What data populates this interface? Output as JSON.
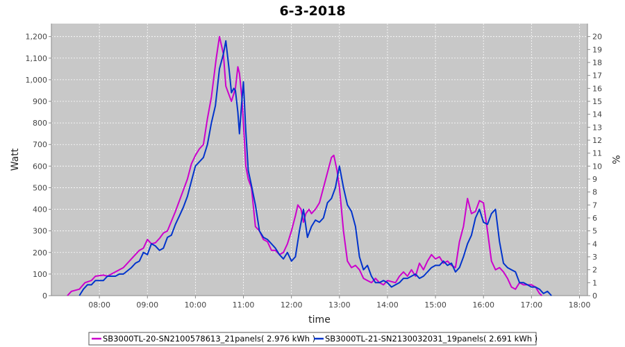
{
  "chart_data": {
    "type": "line",
    "title": "6-3-2018",
    "xlabel": "time",
    "ylabel": "Watt",
    "y2label": "%",
    "x_ticks": [
      "08:00",
      "09:00",
      "10:00",
      "11:00",
      "12:00",
      "13:00",
      "14:00",
      "15:00",
      "16:00",
      "17:00",
      "18:00"
    ],
    "y_ticks": [
      "0",
      "100",
      "200",
      "300",
      "400",
      "500",
      "600",
      "700",
      "800",
      "900",
      "1,000",
      "1,100",
      "1,200"
    ],
    "y2_ticks": [
      "0",
      "1",
      "2",
      "3",
      "4",
      "5",
      "6",
      "7",
      "8",
      "9",
      "10",
      "11",
      "12",
      "13",
      "14",
      "15",
      "16",
      "17",
      "18",
      "19",
      "20"
    ],
    "xlim": [
      "07:00",
      "18:10"
    ],
    "ylim": [
      0,
      1260
    ],
    "y2lim": [
      0,
      21
    ],
    "grid": true,
    "legend_position": "bottom",
    "colors": {
      "plot_bg": "#c8c8c8",
      "grid": "#ffffff",
      "series1": "#cc00cc",
      "series2": "#0033cc"
    },
    "series": [
      {
        "name": "SB3000TL-20-SN2100578613_21panels( 2.976 kWh )",
        "color": "#cc00cc",
        "points": [
          [
            "07:20",
            0
          ],
          [
            "07:25",
            20
          ],
          [
            "07:35",
            30
          ],
          [
            "07:42",
            60
          ],
          [
            "07:50",
            70
          ],
          [
            "07:55",
            90
          ],
          [
            "08:05",
            95
          ],
          [
            "08:10",
            90
          ],
          [
            "08:15",
            100
          ],
          [
            "08:20",
            110
          ],
          [
            "08:30",
            130
          ],
          [
            "08:40",
            170
          ],
          [
            "08:50",
            210
          ],
          [
            "08:55",
            220
          ],
          [
            "09:00",
            260
          ],
          [
            "09:05",
            240
          ],
          [
            "09:10",
            245
          ],
          [
            "09:15",
            265
          ],
          [
            "09:20",
            290
          ],
          [
            "09:25",
            300
          ],
          [
            "09:35",
            390
          ],
          [
            "09:42",
            460
          ],
          [
            "09:50",
            540
          ],
          [
            "09:55",
            610
          ],
          [
            "10:00",
            650
          ],
          [
            "10:05",
            680
          ],
          [
            "10:10",
            700
          ],
          [
            "10:15",
            820
          ],
          [
            "10:20",
            920
          ],
          [
            "10:26",
            1100
          ],
          [
            "10:30",
            1200
          ],
          [
            "10:35",
            1120
          ],
          [
            "10:38",
            970
          ],
          [
            "10:42",
            930
          ],
          [
            "10:45",
            900
          ],
          [
            "10:50",
            960
          ],
          [
            "10:53",
            1060
          ],
          [
            "10:55",
            1030
          ],
          [
            "10:58",
            920
          ],
          [
            "11:00",
            800
          ],
          [
            "11:03",
            600
          ],
          [
            "11:06",
            540
          ],
          [
            "11:10",
            500
          ],
          [
            "11:15",
            320
          ],
          [
            "11:20",
            300
          ],
          [
            "11:25",
            260
          ],
          [
            "11:30",
            250
          ],
          [
            "11:35",
            210
          ],
          [
            "11:40",
            210
          ],
          [
            "11:45",
            190
          ],
          [
            "11:50",
            200
          ],
          [
            "11:55",
            240
          ],
          [
            "12:00",
            300
          ],
          [
            "12:05",
            370
          ],
          [
            "12:08",
            420
          ],
          [
            "12:12",
            400
          ],
          [
            "12:15",
            340
          ],
          [
            "12:18",
            380
          ],
          [
            "12:22",
            400
          ],
          [
            "12:25",
            380
          ],
          [
            "12:30",
            400
          ],
          [
            "12:35",
            430
          ],
          [
            "12:40",
            500
          ],
          [
            "12:45",
            570
          ],
          [
            "12:50",
            640
          ],
          [
            "12:53",
            650
          ],
          [
            "12:57",
            580
          ],
          [
            "13:00",
            500
          ],
          [
            "13:05",
            300
          ],
          [
            "13:10",
            160
          ],
          [
            "13:15",
            130
          ],
          [
            "13:20",
            140
          ],
          [
            "13:25",
            120
          ],
          [
            "13:30",
            80
          ],
          [
            "13:35",
            70
          ],
          [
            "13:40",
            60
          ],
          [
            "13:45",
            80
          ],
          [
            "13:50",
            60
          ],
          [
            "13:55",
            50
          ],
          [
            "14:00",
            70
          ],
          [
            "14:10",
            60
          ],
          [
            "14:15",
            90
          ],
          [
            "14:20",
            110
          ],
          [
            "14:25",
            90
          ],
          [
            "14:30",
            120
          ],
          [
            "14:35",
            90
          ],
          [
            "14:40",
            150
          ],
          [
            "14:45",
            120
          ],
          [
            "14:50",
            160
          ],
          [
            "14:55",
            190
          ],
          [
            "15:00",
            170
          ],
          [
            "15:05",
            180
          ],
          [
            "15:10",
            150
          ],
          [
            "15:15",
            160
          ],
          [
            "15:20",
            140
          ],
          [
            "15:25",
            130
          ],
          [
            "15:30",
            250
          ],
          [
            "15:35",
            320
          ],
          [
            "15:40",
            450
          ],
          [
            "15:45",
            380
          ],
          [
            "15:50",
            390
          ],
          [
            "15:55",
            440
          ],
          [
            "16:00",
            430
          ],
          [
            "16:05",
            300
          ],
          [
            "16:10",
            160
          ],
          [
            "16:15",
            120
          ],
          [
            "16:20",
            130
          ],
          [
            "16:25",
            110
          ],
          [
            "16:30",
            80
          ],
          [
            "16:35",
            40
          ],
          [
            "16:40",
            30
          ],
          [
            "16:45",
            60
          ],
          [
            "16:50",
            50
          ],
          [
            "16:55",
            50
          ],
          [
            "17:00",
            50
          ],
          [
            "17:05",
            40
          ],
          [
            "17:10",
            10
          ],
          [
            "17:13",
            0
          ]
        ]
      },
      {
        "name": "SB3000TL-21-SN2130032031_19panels( 2.691 kWh )",
        "color": "#0033cc",
        "points": [
          [
            "07:35",
            0
          ],
          [
            "07:40",
            30
          ],
          [
            "07:45",
            50
          ],
          [
            "07:50",
            50
          ],
          [
            "07:55",
            70
          ],
          [
            "08:00",
            70
          ],
          [
            "08:05",
            70
          ],
          [
            "08:10",
            90
          ],
          [
            "08:20",
            90
          ],
          [
            "08:25",
            100
          ],
          [
            "08:30",
            100
          ],
          [
            "08:40",
            130
          ],
          [
            "08:45",
            150
          ],
          [
            "08:50",
            160
          ],
          [
            "08:55",
            200
          ],
          [
            "09:00",
            190
          ],
          [
            "09:05",
            240
          ],
          [
            "09:10",
            230
          ],
          [
            "09:15",
            210
          ],
          [
            "09:20",
            220
          ],
          [
            "09:25",
            270
          ],
          [
            "09:30",
            280
          ],
          [
            "09:35",
            330
          ],
          [
            "09:40",
            370
          ],
          [
            "09:45",
            410
          ],
          [
            "09:50",
            460
          ],
          [
            "09:55",
            530
          ],
          [
            "10:00",
            600
          ],
          [
            "10:05",
            620
          ],
          [
            "10:10",
            640
          ],
          [
            "10:15",
            700
          ],
          [
            "10:20",
            800
          ],
          [
            "10:25",
            880
          ],
          [
            "10:30",
            1050
          ],
          [
            "10:35",
            1120
          ],
          [
            "10:38",
            1180
          ],
          [
            "10:42",
            1050
          ],
          [
            "10:45",
            940
          ],
          [
            "10:48",
            960
          ],
          [
            "10:50",
            950
          ],
          [
            "10:53",
            850
          ],
          [
            "10:55",
            750
          ],
          [
            "10:58",
            900
          ],
          [
            "11:00",
            990
          ],
          [
            "11:03",
            760
          ],
          [
            "11:06",
            580
          ],
          [
            "11:10",
            510
          ],
          [
            "11:15",
            420
          ],
          [
            "11:20",
            300
          ],
          [
            "11:25",
            270
          ],
          [
            "11:30",
            260
          ],
          [
            "11:35",
            240
          ],
          [
            "11:40",
            220
          ],
          [
            "11:45",
            190
          ],
          [
            "11:50",
            170
          ],
          [
            "11:55",
            200
          ],
          [
            "12:00",
            160
          ],
          [
            "12:05",
            180
          ],
          [
            "12:10",
            300
          ],
          [
            "12:15",
            400
          ],
          [
            "12:20",
            270
          ],
          [
            "12:25",
            320
          ],
          [
            "12:30",
            350
          ],
          [
            "12:35",
            340
          ],
          [
            "12:40",
            360
          ],
          [
            "12:45",
            430
          ],
          [
            "12:50",
            450
          ],
          [
            "12:55",
            500
          ],
          [
            "13:00",
            600
          ],
          [
            "13:05",
            500
          ],
          [
            "13:10",
            420
          ],
          [
            "13:15",
            390
          ],
          [
            "13:20",
            320
          ],
          [
            "13:25",
            180
          ],
          [
            "13:30",
            120
          ],
          [
            "13:35",
            140
          ],
          [
            "13:40",
            90
          ],
          [
            "13:45",
            60
          ],
          [
            "13:50",
            60
          ],
          [
            "13:55",
            70
          ],
          [
            "14:00",
            60
          ],
          [
            "14:05",
            40
          ],
          [
            "14:10",
            50
          ],
          [
            "14:15",
            60
          ],
          [
            "14:20",
            80
          ],
          [
            "14:25",
            80
          ],
          [
            "14:30",
            90
          ],
          [
            "14:35",
            100
          ],
          [
            "14:40",
            80
          ],
          [
            "14:45",
            90
          ],
          [
            "14:50",
            110
          ],
          [
            "14:55",
            130
          ],
          [
            "15:00",
            140
          ],
          [
            "15:05",
            140
          ],
          [
            "15:10",
            160
          ],
          [
            "15:15",
            140
          ],
          [
            "15:20",
            150
          ],
          [
            "15:25",
            110
          ],
          [
            "15:30",
            130
          ],
          [
            "15:35",
            180
          ],
          [
            "15:40",
            240
          ],
          [
            "15:45",
            280
          ],
          [
            "15:50",
            360
          ],
          [
            "15:55",
            400
          ],
          [
            "16:00",
            340
          ],
          [
            "16:05",
            330
          ],
          [
            "16:10",
            380
          ],
          [
            "16:15",
            400
          ],
          [
            "16:20",
            250
          ],
          [
            "16:25",
            150
          ],
          [
            "16:30",
            130
          ],
          [
            "16:35",
            120
          ],
          [
            "16:40",
            110
          ],
          [
            "16:45",
            60
          ],
          [
            "16:50",
            60
          ],
          [
            "16:55",
            50
          ],
          [
            "17:00",
            40
          ],
          [
            "17:05",
            40
          ],
          [
            "17:10",
            30
          ],
          [
            "17:15",
            10
          ],
          [
            "17:20",
            20
          ],
          [
            "17:25",
            0
          ]
        ]
      }
    ]
  }
}
